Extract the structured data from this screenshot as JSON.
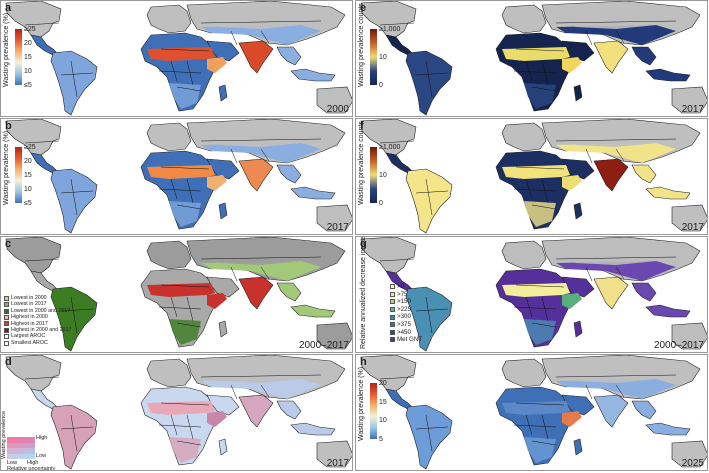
{
  "panels": [
    {
      "id": "a",
      "year": "2000",
      "legend_type": "scale",
      "scale": "wasting",
      "legend_title": "Wasting prevalence (%)",
      "ticks": [
        "≥25",
        "20",
        "15",
        "10",
        "≤5"
      ],
      "colors": {
        "ocean": "#ffffff",
        "land": "#3f6fb6",
        "grey": "#bfbfbf",
        "sahel": "#e0502e",
        "horn": "#f0a05a",
        "india": "#d84a2a",
        "asia": "#8aaee0",
        "south": "#7ea6dc"
      }
    },
    {
      "id": "e",
      "year": "2017",
      "legend_type": "scale",
      "scale": "counts",
      "legend_title": "Wasting prevalence counts",
      "ticks": [
        "≥1,000",
        "10",
        "0"
      ],
      "colors": {
        "ocean": "#ffffff",
        "land": "#14244f",
        "grey": "#bfbfbf",
        "sahel": "#e9dc6a",
        "horn": "#f2d45f",
        "india": "#f2e07a",
        "asia": "#233a7a",
        "south": "#2a4784"
      }
    },
    {
      "id": "b",
      "year": "2017",
      "legend_type": "scale",
      "scale": "wasting",
      "legend_title": "Wasting prevalence (%)",
      "ticks": [
        "≥25",
        "20",
        "15",
        "10",
        "≤5"
      ],
      "colors": {
        "ocean": "#ffffff",
        "land": "#3f6fb6",
        "grey": "#bfbfbf",
        "sahel": "#f08a45",
        "horn": "#f2b070",
        "india": "#ec8a52",
        "asia": "#8aaee0",
        "south": "#7ea6dc"
      }
    },
    {
      "id": "f",
      "year": "2017",
      "legend_type": "scale",
      "scale": "counts",
      "legend_title": "Wasting prevalence counts (thousands)",
      "ticks": [
        "≥1,000",
        "10",
        "0"
      ],
      "colors": {
        "ocean": "#ffffff",
        "land": "#1d2e62",
        "grey": "#bfbfbf",
        "sahel": "#f1e27c",
        "horn": "#eedd73",
        "india": "#8e1d12",
        "asia": "#f0e38a",
        "south": "#f4e58a"
      }
    },
    {
      "id": "c",
      "year": "2000–2017",
      "legend_type": "categories",
      "items": [
        {
          "label": "Lowest in 2000",
          "color": "#b7d98a"
        },
        {
          "label": "Lowest in 2017",
          "color": "#7bbd4a"
        },
        {
          "label": "Lowest in 2000 and 2017",
          "color": "#2f6e1c"
        },
        {
          "label": "Highest in 2000",
          "color": "#f2b8b0"
        },
        {
          "label": "Highest in 2017",
          "color": "#d2403a"
        },
        {
          "label": "Highest in 2000 and 2017",
          "color": "#8a1410"
        },
        {
          "label": "Largest AROC",
          "color": "#ffffff"
        },
        {
          "label": "Smallest AROC",
          "color": "#ffffff"
        }
      ],
      "colors": {
        "ocean": "#ffffff",
        "land": "#a9a9a9",
        "grey": "#9c9c9c",
        "sahel": "#c8322c",
        "horn": "#c8322c",
        "india": "#c8322c",
        "asia": "#a2c97a",
        "south": "#3c7d24"
      }
    },
    {
      "id": "g",
      "year": "2000–2017",
      "legend_type": "categories",
      "legend_title": "Relative annualized decrease in wasting (%)",
      "items": [
        {
          "label": ">0",
          "color": "#fff7a8"
        },
        {
          "label": ">75",
          "color": "#e9ef7b"
        },
        {
          "label": ">150",
          "color": "#a8d96a"
        },
        {
          "label": ">225",
          "color": "#5cc07a"
        },
        {
          "label": ">300",
          "color": "#2a9a88"
        },
        {
          "label": ">375",
          "color": "#3a6fa2"
        },
        {
          "label": ">450",
          "color": "#3b3f98"
        },
        {
          "label": "Met GNT",
          "color": "#52308f"
        }
      ],
      "colors": {
        "ocean": "#ffffff",
        "land": "#55309a",
        "grey": "#bdbdbd",
        "sahel": "#f3ee9a",
        "horn": "#5ab07a",
        "india": "#f1e08a",
        "asia": "#6b48b0",
        "south": "#4a8fb4"
      }
    },
    {
      "id": "d",
      "year": "2017",
      "legend_type": "bivariate",
      "axis_y": "Wasting prevalence",
      "axis_y_low": "Low",
      "axis_y_high": "High",
      "axis_x_low": "Low",
      "axis_x_high": "High",
      "axis_x": "Relative uncertainty",
      "colors": {
        "ocean": "#ffffff",
        "land": "#c9d8ee",
        "grey": "#bfbfbf",
        "sahel": "#e9a8b8",
        "horn": "#c887a8",
        "india": "#d6a6c0",
        "asia": "#b9cbe8",
        "south": "#d8a2b6"
      }
    },
    {
      "id": "h",
      "year": "2025",
      "legend_type": "scale",
      "scale": "wasting",
      "legend_title": "Wasting prevalence (%)",
      "ticks": [
        "20",
        "15",
        "10",
        "5"
      ],
      "colors": {
        "ocean": "#ffffff",
        "land": "#3f6fb6",
        "grey": "#bfbfbf",
        "sahel": "#5c88c8",
        "horn": "#e57b48",
        "india": "#96b6e2",
        "asia": "#8aaee0",
        "south": "#6d9cd8"
      }
    }
  ]
}
